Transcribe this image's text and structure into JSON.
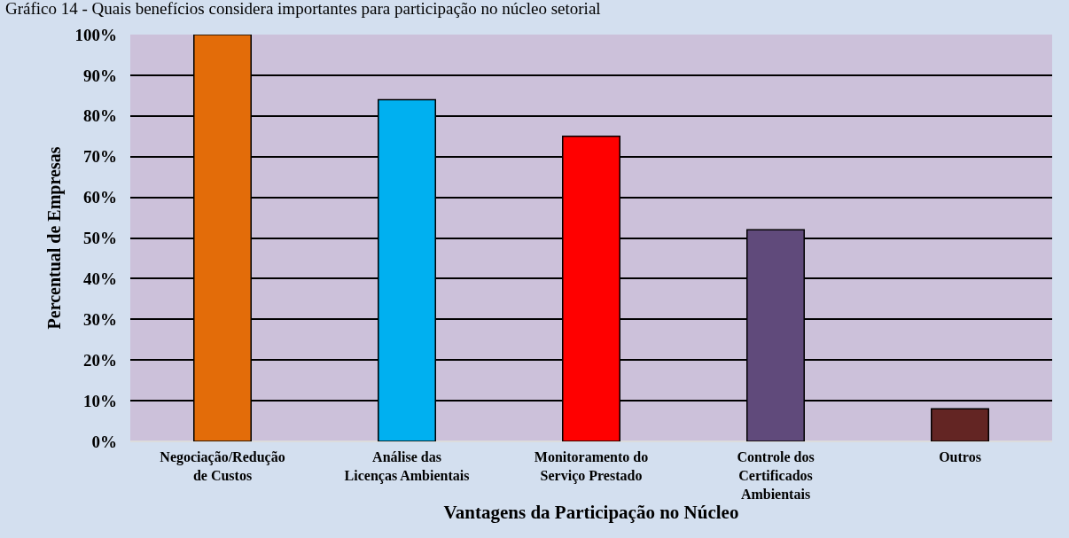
{
  "chart_data": {
    "type": "bar",
    "title": "Gráfico 14 - Quais benefícios considera importantes para participação no núcleo setorial",
    "xlabel": "Vantagens da Participação no Núcleo",
    "ylabel": "Percentual de Empresas",
    "categories": [
      "Negociação/Redução\nde Custos",
      "Análise das\nLicenças Ambientais",
      "Monitoramento do\nServiço Prestado",
      "Controle dos\nCertificados\nAmbientais",
      "Outros"
    ],
    "values": [
      100,
      84,
      75,
      52,
      8
    ],
    "colors": [
      "#e36c09",
      "#00b0f0",
      "#ff0000",
      "#604a7b",
      "#632523"
    ],
    "ylim": [
      0,
      100
    ],
    "yticks": [
      {
        "value": 0,
        "label": "0%"
      },
      {
        "value": 10,
        "label": "10%"
      },
      {
        "value": 20,
        "label": "20%"
      },
      {
        "value": 30,
        "label": "30%"
      },
      {
        "value": 40,
        "label": "40%"
      },
      {
        "value": 50,
        "label": "50%"
      },
      {
        "value": 60,
        "label": "60%"
      },
      {
        "value": 70,
        "label": "70%"
      },
      {
        "value": 80,
        "label": "80%"
      },
      {
        "value": 90,
        "label": "90%"
      },
      {
        "value": 100,
        "label": "100%"
      }
    ],
    "grid": "y"
  }
}
